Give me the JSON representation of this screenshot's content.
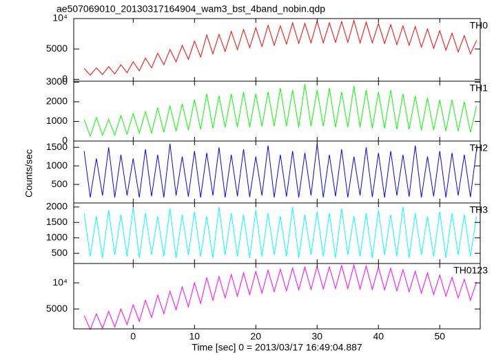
{
  "figure": {
    "title": "ae507069010_20130317164904_wam3_bst_4band_nobin.qdp",
    "xlabel": "Time [sec] 0 = 2013/03/17 16:49:04.887",
    "ylabel": "Counts/sec"
  },
  "chart_data": [
    {
      "type": "line",
      "label": "TH0",
      "color": "#ff0000",
      "x": [
        -8,
        -7,
        -6,
        -5,
        -4,
        -3,
        -2,
        -1,
        0,
        1,
        2,
        3,
        4,
        5,
        6,
        7,
        8,
        9,
        10,
        11,
        12,
        13,
        14,
        15,
        16,
        17,
        18,
        19,
        20,
        21,
        22,
        23,
        24,
        25,
        26,
        27,
        28,
        29,
        30,
        31,
        32,
        33,
        34,
        35,
        36,
        37,
        38,
        39,
        40,
        41,
        42,
        43,
        44,
        45,
        46,
        47,
        48,
        49,
        50,
        51,
        52,
        53,
        54,
        55,
        56
      ],
      "values": [
        1800,
        700,
        1900,
        800,
        2100,
        900,
        2400,
        1100,
        2900,
        1400,
        3500,
        1900,
        4300,
        2400,
        4900,
        2900,
        5600,
        3300,
        6300,
        3700,
        7300,
        4200,
        7400,
        4600,
        7900,
        4900,
        8200,
        5200,
        8500,
        5400,
        8900,
        5600,
        8800,
        5800,
        9300,
        5900,
        9200,
        6000,
        9600,
        6000,
        9300,
        6100,
        9500,
        6100,
        9700,
        6000,
        9400,
        6000,
        9200,
        5900,
        9000,
        5700,
        8800,
        5600,
        8700,
        5300,
        8300,
        5100,
        8000,
        4800,
        7600,
        4500,
        7200,
        4200,
        6400
      ],
      "xlim": [
        -9.7,
        56.6
      ],
      "xticks": [
        0,
        10,
        20,
        30,
        40,
        50
      ],
      "ylim": [
        -300,
        10000
      ],
      "yticks": [
        0,
        5000,
        {
          "value": 10000,
          "label": "10⁴"
        }
      ]
    },
    {
      "type": "line",
      "label": "TH1",
      "color": "#00ff00",
      "x": [
        -8,
        -7,
        -6,
        -5,
        -4,
        -3,
        -2,
        -1,
        0,
        1,
        2,
        3,
        4,
        5,
        6,
        7,
        8,
        9,
        10,
        11,
        12,
        13,
        14,
        15,
        16,
        17,
        18,
        19,
        20,
        21,
        22,
        23,
        24,
        25,
        26,
        27,
        28,
        29,
        30,
        31,
        32,
        33,
        34,
        35,
        36,
        37,
        38,
        39,
        40,
        41,
        42,
        43,
        44,
        45,
        46,
        47,
        48,
        49,
        50,
        51,
        52,
        53,
        54,
        55,
        56
      ],
      "values": [
        1100,
        250,
        1200,
        300,
        1100,
        300,
        1300,
        350,
        1400,
        400,
        1500,
        400,
        1700,
        450,
        1800,
        500,
        1900,
        550,
        2100,
        600,
        2400,
        650,
        2300,
        700,
        2400,
        700,
        2500,
        700,
        2400,
        750,
        2500,
        750,
        2700,
        750,
        2600,
        700,
        2900,
        750,
        2600,
        750,
        2700,
        700,
        2500,
        700,
        2800,
        700,
        2600,
        650,
        2500,
        650,
        2600,
        600,
        2400,
        600,
        2300,
        550,
        2200,
        550,
        2100,
        500,
        2100,
        500,
        2000,
        450,
        1800
      ],
      "xlim": [
        -9.7,
        56.6
      ],
      "xticks": [
        0,
        10,
        20,
        30,
        40,
        50
      ],
      "ylim": [
        0,
        3050
      ],
      "yticks": [
        0,
        1000,
        2000,
        3000
      ]
    },
    {
      "type": "line",
      "label": "TH2",
      "color": "#0000ff",
      "x": [
        -8,
        -7,
        -6,
        -5,
        -4,
        -3,
        -2,
        -1,
        0,
        1,
        2,
        3,
        4,
        5,
        6,
        7,
        8,
        9,
        10,
        11,
        12,
        13,
        14,
        15,
        16,
        17,
        18,
        19,
        20,
        21,
        22,
        23,
        24,
        25,
        26,
        27,
        28,
        29,
        30,
        31,
        32,
        33,
        34,
        35,
        36,
        37,
        38,
        39,
        40,
        41,
        42,
        43,
        44,
        45,
        46,
        47,
        48,
        49,
        50,
        51,
        52,
        53,
        54,
        55,
        56
      ],
      "values": [
        1400,
        150,
        1200,
        200,
        1500,
        150,
        1300,
        200,
        1200,
        150,
        1450,
        180,
        1300,
        150,
        1600,
        200,
        1250,
        170,
        1400,
        150,
        1350,
        200,
        1500,
        150,
        1300,
        180,
        1450,
        160,
        1250,
        200,
        1550,
        150,
        1300,
        170,
        1400,
        150,
        1350,
        200,
        1600,
        150,
        1300,
        180,
        1450,
        150,
        1250,
        200,
        1500,
        160,
        1350,
        150,
        1400,
        200,
        1300,
        170,
        1550,
        150,
        1250,
        180,
        1400,
        150,
        1350,
        200,
        1300,
        160,
        1450
      ],
      "xlim": [
        -9.7,
        56.6
      ],
      "xticks": [
        0,
        10,
        20,
        30,
        40,
        50
      ],
      "ylim": [
        0,
        1670
      ],
      "yticks": [
        500,
        1000,
        1500
      ]
    },
    {
      "type": "line",
      "label": "TH3",
      "color": "#00ffff",
      "x": [
        -8,
        -7,
        -6,
        -5,
        -4,
        -3,
        -2,
        -1,
        0,
        1,
        2,
        3,
        4,
        5,
        6,
        7,
        8,
        9,
        10,
        11,
        12,
        13,
        14,
        15,
        16,
        17,
        18,
        19,
        20,
        21,
        22,
        23,
        24,
        25,
        26,
        27,
        28,
        29,
        30,
        31,
        32,
        33,
        34,
        35,
        36,
        37,
        38,
        39,
        40,
        41,
        42,
        43,
        44,
        45,
        46,
        47,
        48,
        49,
        50,
        51,
        52,
        53,
        54,
        55,
        56
      ],
      "values": [
        1800,
        400,
        1700,
        350,
        1900,
        450,
        1750,
        400,
        2000,
        350,
        1800,
        450,
        1700,
        400,
        1950,
        350,
        1750,
        450,
        1850,
        400,
        1700,
        350,
        2000,
        450,
        1800,
        400,
        1750,
        350,
        1900,
        400,
        1800,
        450,
        1700,
        400,
        2000,
        350,
        1750,
        450,
        1850,
        400,
        1800,
        350,
        1950,
        450,
        1700,
        400,
        1800,
        350,
        1900,
        450,
        1750,
        400,
        2000,
        350,
        1800,
        450,
        1700,
        400,
        1850,
        350,
        1800,
        450,
        1750,
        400,
        1700
      ],
      "xlim": [
        -9.7,
        56.6
      ],
      "xticks": [
        0,
        10,
        20,
        30,
        40,
        50
      ],
      "ylim": [
        170,
        2130
      ],
      "yticks": [
        500,
        1000,
        1500,
        2000
      ]
    },
    {
      "type": "line",
      "label": "TH0123",
      "color": "#ff00ff",
      "log_y": true,
      "x": [
        -8,
        -7,
        -6,
        -5,
        -4,
        -3,
        -2,
        -1,
        0,
        1,
        2,
        3,
        4,
        5,
        6,
        7,
        8,
        9,
        10,
        11,
        12,
        13,
        14,
        15,
        16,
        17,
        18,
        19,
        20,
        21,
        22,
        23,
        24,
        25,
        26,
        27,
        28,
        29,
        30,
        31,
        32,
        33,
        34,
        35,
        36,
        37,
        38,
        39,
        40,
        41,
        42,
        43,
        44,
        45,
        46,
        47,
        48,
        49,
        50,
        51,
        52,
        53,
        54,
        55,
        56
      ],
      "values": [
        4200,
        2900,
        4400,
        3000,
        4700,
        3100,
        5000,
        3300,
        5600,
        3600,
        6300,
        4000,
        7200,
        4400,
        8000,
        4900,
        9000,
        5300,
        10000,
        5800,
        11500,
        6300,
        11800,
        6700,
        12500,
        7000,
        13000,
        7300,
        13500,
        7600,
        14000,
        7900,
        14300,
        8100,
        14800,
        8300,
        15200,
        8400,
        15500,
        8500,
        15300,
        8600,
        15800,
        8600,
        16000,
        8500,
        15600,
        8400,
        15200,
        8300,
        14700,
        8100,
        14200,
        7900,
        13600,
        7600,
        13000,
        7300,
        12300,
        7000,
        11600,
        6700,
        11000,
        6300,
        10200
      ],
      "xlim": [
        -9.7,
        56.6
      ],
      "xticks": [
        0,
        10,
        20,
        30,
        40,
        50
      ],
      "ylim": [
        2950,
        16700
      ],
      "yticks": [
        5000,
        {
          "value": 10000,
          "label": "10⁴"
        }
      ]
    }
  ]
}
